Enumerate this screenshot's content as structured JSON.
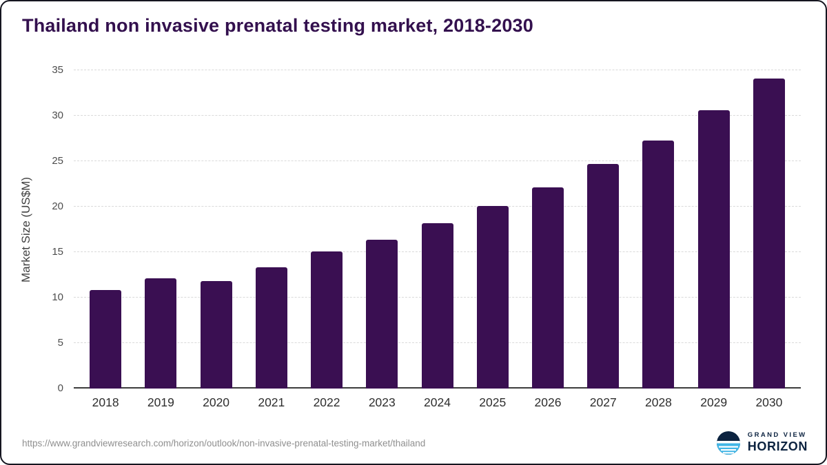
{
  "page": {
    "source_url": "https://www.grandviewresearch.com/horizon/outlook/non-invasive-prenatal-testing-market/thailand",
    "logo": {
      "line1": "GRAND VIEW",
      "line2": "HORIZON"
    }
  },
  "chart_data": {
    "type": "bar",
    "title": "Thailand non invasive prenatal testing market, 2018-2030",
    "categories": [
      "2018",
      "2019",
      "2020",
      "2021",
      "2022",
      "2023",
      "2024",
      "2025",
      "2026",
      "2027",
      "2028",
      "2029",
      "2030"
    ],
    "values": [
      10.8,
      12.1,
      11.8,
      13.3,
      15.1,
      16.4,
      18.2,
      20.1,
      22.1,
      24.7,
      27.3,
      30.6,
      34.1
    ],
    "xlabel": "",
    "ylabel": "Market Size (US$M)",
    "ylim": [
      0,
      35
    ],
    "yticks": [
      0,
      5,
      10,
      15,
      20,
      25,
      30,
      35
    ],
    "grid": "horizontal-dashed",
    "legend": "none",
    "bar_color": "#3a0f52"
  },
  "colors": {
    "bar": "#3a0f52",
    "title": "#33104e",
    "grid": "#d9d9d9",
    "axis": "#3c3c3c",
    "navy": "#0c2340",
    "blue": "#41b6e6",
    "source": "#8f8f8f",
    "tick": "#4d4d4d"
  }
}
